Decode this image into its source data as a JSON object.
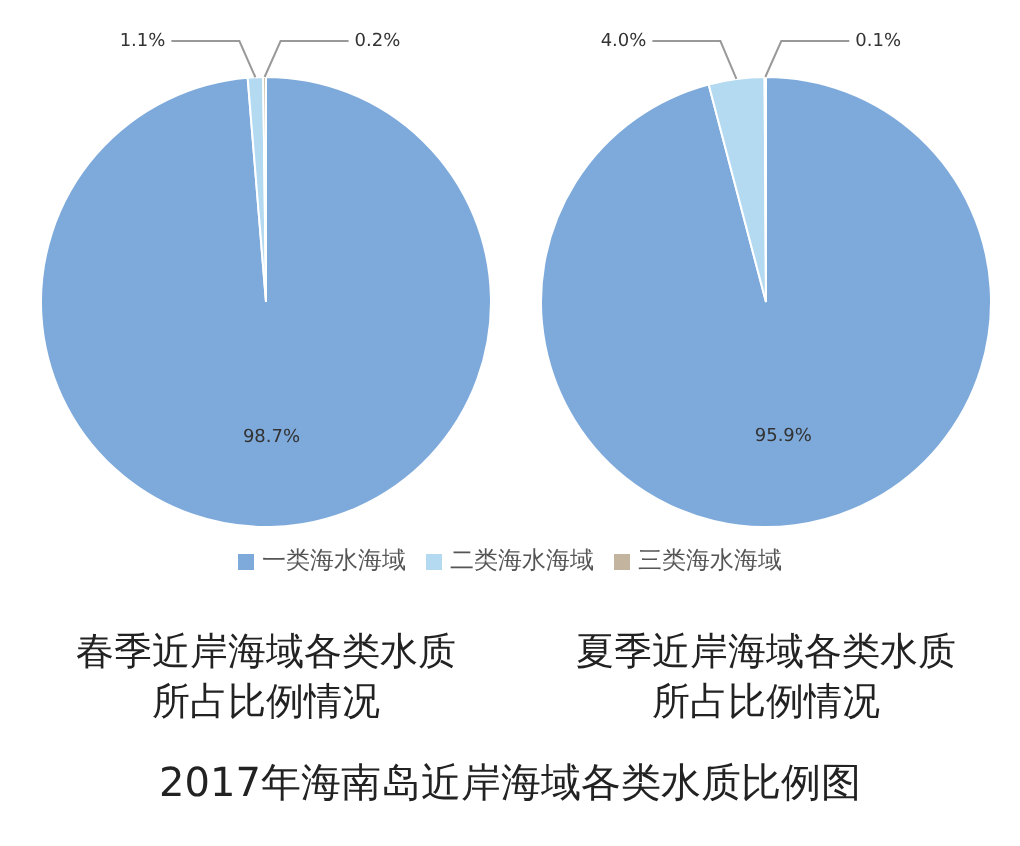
{
  "chart_data": [
    {
      "type": "pie",
      "title": "春季近岸海域各类水质所占比例情况",
      "categories": [
        "一类海水海域",
        "二类海水海域",
        "三类海水海域"
      ],
      "values": [
        98.7,
        1.1,
        0.2
      ],
      "value_labels": [
        "98.7%",
        "1.1%",
        "0.2%"
      ],
      "colors": [
        "#7eaadb",
        "#b4daf2",
        "#c2b49f"
      ],
      "legend": "bottom",
      "annotations": [
        "2017年海南岛近岸海域各类水质比例图"
      ]
    },
    {
      "type": "pie",
      "title": "夏季近岸海域各类水质所占比例情况",
      "categories": [
        null,
        null,
        null
      ],
      "values": [
        95.9,
        4.0,
        0.1
      ],
      "value_labels": [
        "95.9%",
        "4.0%",
        "0.1%"
      ],
      "colors": [
        "#7eaadb",
        "#b4daf2",
        "#c2b49f"
      ]
    }
  ]
}
